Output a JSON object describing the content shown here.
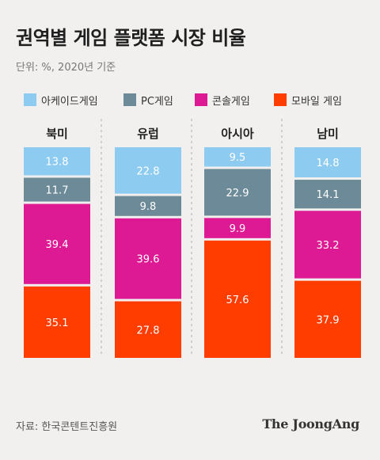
{
  "title": "권역별 게임 플랫폼 시장 비율",
  "subtitle": "단위: %, 2020년 기준",
  "source": "자료: 한국콘텐트진흥원",
  "brand": "The JoongAng",
  "colors": {
    "arcade": "#8ecbf0",
    "pc": "#6c8a97",
    "console": "#dd1a93",
    "mobile": "#ff3d00"
  },
  "chart_data": {
    "type": "bar",
    "stacked": true,
    "normalized": true,
    "categories": [
      "북미",
      "유럽",
      "아시아",
      "남미"
    ],
    "series": [
      {
        "name": "아케이드게임",
        "color_key": "arcade",
        "values": [
          13.8,
          22.8,
          9.5,
          14.8
        ]
      },
      {
        "name": "PC게임",
        "color_key": "pc",
        "values": [
          11.7,
          9.8,
          22.9,
          14.1
        ]
      },
      {
        "name": "콘솔게임",
        "color_key": "console",
        "values": [
          39.4,
          39.6,
          9.9,
          33.2
        ]
      },
      {
        "name": "모바일 게임",
        "color_key": "mobile",
        "values": [
          35.1,
          27.8,
          57.6,
          37.9
        ]
      }
    ],
    "unit": "%"
  }
}
